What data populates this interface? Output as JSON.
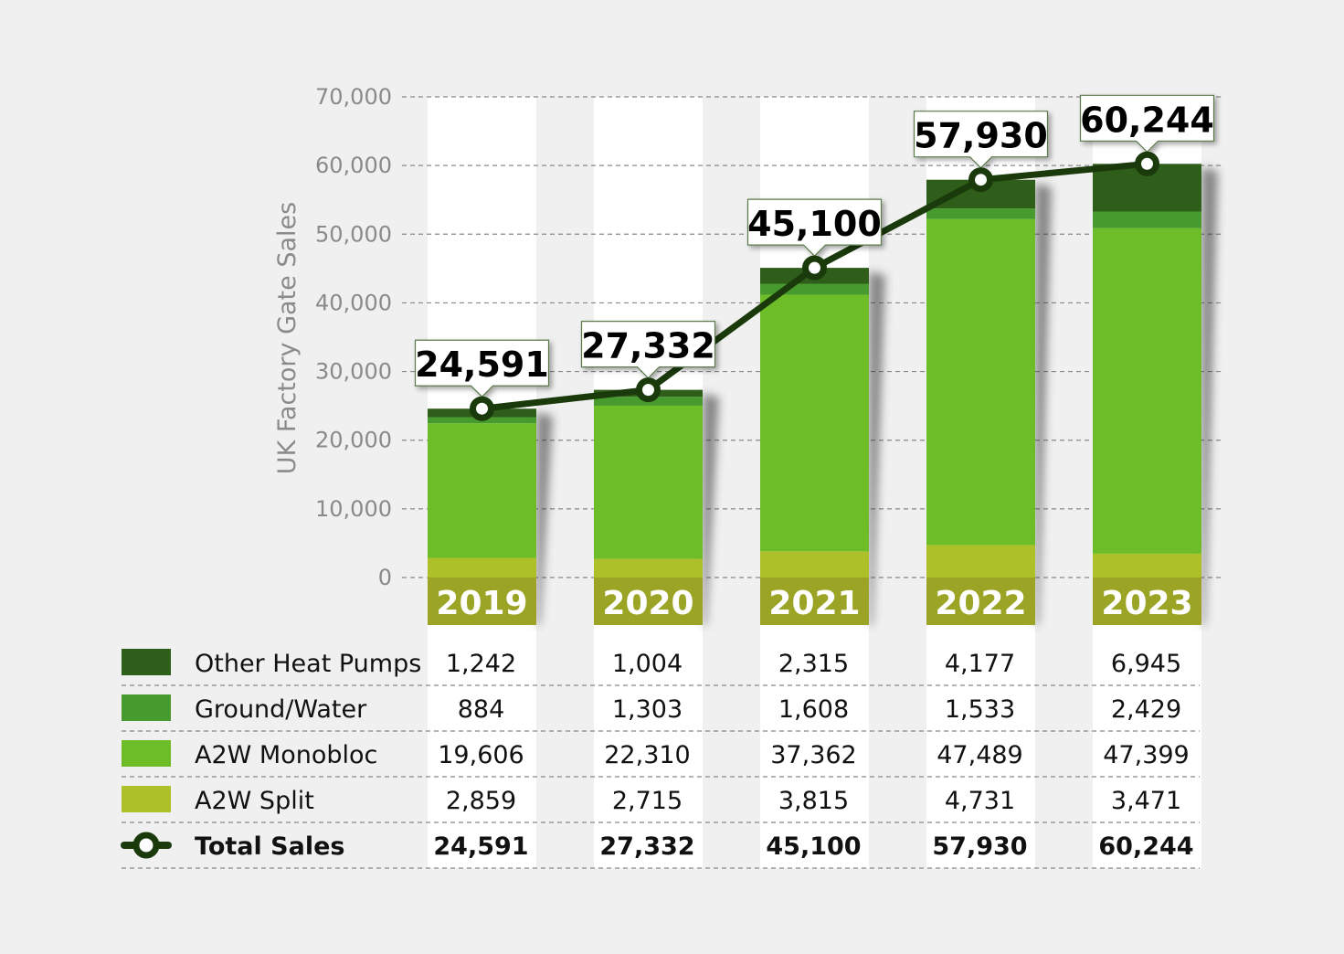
{
  "chart_data": {
    "type": "bar",
    "stacked": true,
    "ylabel": "UK Factory Gate Sales",
    "ylim": [
      0,
      70000
    ],
    "yticks": [
      "0",
      "10,000",
      "20,000",
      "30,000",
      "40,000",
      "50,000",
      "60,000",
      "70,000"
    ],
    "grid": true,
    "categories": [
      "2019",
      "2020",
      "2021",
      "2022",
      "2023"
    ],
    "series": [
      {
        "name": "A2W Split",
        "color": "#adc02a",
        "values": [
          2859,
          2715,
          3815,
          4731,
          3471
        ],
        "labels": [
          "2,859",
          "2,715",
          "3,815",
          "4,731",
          "3,471"
        ]
      },
      {
        "name": "A2W Monobloc",
        "color": "#6dbd28",
        "values": [
          19606,
          22310,
          37362,
          47489,
          47399
        ],
        "labels": [
          "19,606",
          "22,310",
          "37,362",
          "47,489",
          "47,399"
        ]
      },
      {
        "name": "Ground/Water",
        "color": "#479a2e",
        "values": [
          884,
          1303,
          1608,
          1533,
          2429
        ],
        "labels": [
          "884",
          "1,303",
          "1,608",
          "1,533",
          "2,429"
        ]
      },
      {
        "name": "Other Heat Pumps",
        "color": "#2f5d1a",
        "values": [
          1242,
          1004,
          2315,
          4177,
          6945
        ],
        "labels": [
          "1,242",
          "1,004",
          "2,315",
          "4,177",
          "6,945"
        ]
      }
    ],
    "line": {
      "name": "Total Sales",
      "color": "#1b3a0c",
      "values": [
        24591,
        27332,
        45100,
        57930,
        60244
      ],
      "labels": [
        "24,591",
        "27,332",
        "45,100",
        "57,930",
        "60,244"
      ]
    },
    "year_band_color": "#9ba424",
    "legend_placement": "table-bottom-left"
  }
}
